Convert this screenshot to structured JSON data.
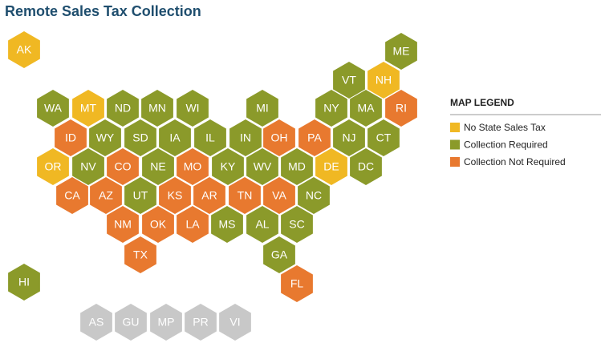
{
  "title": "Remote Sales Tax Collection",
  "legend": {
    "title": "MAP LEGEND",
    "items": [
      {
        "label": "No State Sales Tax",
        "color": "#f0b823"
      },
      {
        "label": "Collection Required",
        "color": "#8b9a2a"
      },
      {
        "label": "Collection Not Required",
        "color": "#e8792f"
      }
    ]
  },
  "other_color": "#c8c8c8",
  "states": [
    {
      "label": "AK",
      "legend": 0
    },
    {
      "label": "ME",
      "legend": 1
    },
    {
      "label": "VT",
      "legend": 1
    },
    {
      "label": "NH",
      "legend": 0
    },
    {
      "label": "WA",
      "legend": 1
    },
    {
      "label": "MT",
      "legend": 0
    },
    {
      "label": "ND",
      "legend": 1
    },
    {
      "label": "MN",
      "legend": 1
    },
    {
      "label": "WI",
      "legend": 1
    },
    {
      "label": "MI",
      "legend": 1
    },
    {
      "label": "NY",
      "legend": 1
    },
    {
      "label": "MA",
      "legend": 1
    },
    {
      "label": "RI",
      "legend": 2
    },
    {
      "label": "ID",
      "legend": 2
    },
    {
      "label": "WY",
      "legend": 1
    },
    {
      "label": "SD",
      "legend": 1
    },
    {
      "label": "IA",
      "legend": 1
    },
    {
      "label": "IL",
      "legend": 1
    },
    {
      "label": "IN",
      "legend": 1
    },
    {
      "label": "OH",
      "legend": 2
    },
    {
      "label": "PA",
      "legend": 2
    },
    {
      "label": "NJ",
      "legend": 1
    },
    {
      "label": "CT",
      "legend": 1
    },
    {
      "label": "OR",
      "legend": 0
    },
    {
      "label": "NV",
      "legend": 1
    },
    {
      "label": "CO",
      "legend": 2
    },
    {
      "label": "NE",
      "legend": 1
    },
    {
      "label": "MO",
      "legend": 2
    },
    {
      "label": "KY",
      "legend": 1
    },
    {
      "label": "WV",
      "legend": 1
    },
    {
      "label": "MD",
      "legend": 1
    },
    {
      "label": "DE",
      "legend": 0
    },
    {
      "label": "DC",
      "legend": 1
    },
    {
      "label": "CA",
      "legend": 2
    },
    {
      "label": "AZ",
      "legend": 2
    },
    {
      "label": "UT",
      "legend": 1
    },
    {
      "label": "KS",
      "legend": 2
    },
    {
      "label": "AR",
      "legend": 2
    },
    {
      "label": "TN",
      "legend": 2
    },
    {
      "label": "VA",
      "legend": 2
    },
    {
      "label": "NC",
      "legend": 1
    },
    {
      "label": "NM",
      "legend": 2
    },
    {
      "label": "OK",
      "legend": 2
    },
    {
      "label": "LA",
      "legend": 2
    },
    {
      "label": "MS",
      "legend": 1
    },
    {
      "label": "AL",
      "legend": 1
    },
    {
      "label": "SC",
      "legend": 1
    },
    {
      "label": "TX",
      "legend": 2
    },
    {
      "label": "GA",
      "legend": 1
    },
    {
      "label": "FL",
      "legend": 2
    },
    {
      "label": "HI",
      "legend": 1
    },
    {
      "label": "AS",
      "legend": null
    },
    {
      "label": "GU",
      "legend": null
    },
    {
      "label": "MP",
      "legend": null
    },
    {
      "label": "PR",
      "legend": null
    },
    {
      "label": "VI",
      "legend": null
    }
  ]
}
